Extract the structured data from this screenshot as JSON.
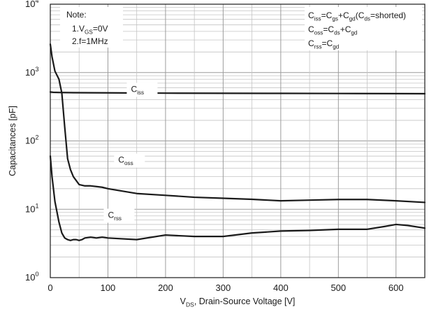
{
  "chart_data": {
    "type": "line",
    "title": "",
    "xlabel": {
      "main": "V",
      "sub": "DS",
      "rest": ", Drain-Source Voltage [V]"
    },
    "ylabel": "Capacitances [pF]",
    "xlim": [
      0,
      650
    ],
    "ylim": [
      1,
      10000
    ],
    "yscale": "log",
    "x_ticks": [
      0,
      100,
      200,
      300,
      400,
      500,
      600
    ],
    "x_tick_labels": [
      "0",
      "100",
      "200",
      "300",
      "400",
      "500",
      "600"
    ],
    "y_ticks": [
      {
        "value": 1,
        "base": "10",
        "exp": "0"
      },
      {
        "value": 10,
        "base": "10",
        "exp": "1"
      },
      {
        "value": 100,
        "base": "10",
        "exp": "2"
      },
      {
        "value": 1000,
        "base": "10",
        "exp": "3"
      },
      {
        "value": 10000,
        "base": "10",
        "exp": "4"
      }
    ],
    "grid": true,
    "series": [
      {
        "name": "Ciss",
        "label": {
          "main": "C",
          "sub": "iss"
        },
        "label_at": {
          "x": 140,
          "y": 520
        },
        "color": "#1a1a1a",
        "x": [
          0,
          5,
          15,
          40,
          100,
          200,
          300,
          400,
          500,
          600,
          650
        ],
        "y": [
          520,
          515,
          512,
          508,
          505,
          500,
          498,
          496,
          494,
          492,
          490
        ]
      },
      {
        "name": "Coss",
        "label": {
          "main": "C",
          "sub": "oss"
        },
        "label_at": {
          "x": 118,
          "y": 48
        },
        "color": "#1a1a1a",
        "x": [
          0,
          3,
          8,
          15,
          20,
          25,
          30,
          35,
          40,
          50,
          60,
          70,
          80,
          90,
          100,
          150,
          200,
          250,
          300,
          350,
          400,
          450,
          500,
          550,
          600,
          650
        ],
        "y": [
          2600,
          1700,
          1050,
          800,
          500,
          160,
          55,
          38,
          30,
          23,
          22,
          22,
          21.5,
          21,
          20,
          17,
          16,
          15,
          14.5,
          14,
          13.3,
          13.6,
          13.9,
          13.9,
          13.3,
          12.6
        ]
      },
      {
        "name": "Crss",
        "label": {
          "main": "C",
          "sub": "rss"
        },
        "label_at": {
          "x": 100,
          "y": 7.5
        },
        "color": "#1a1a1a",
        "x": [
          0,
          3,
          8,
          15,
          20,
          25,
          30,
          35,
          40,
          45,
          50,
          55,
          60,
          70,
          80,
          90,
          100,
          150,
          200,
          250,
          300,
          350,
          400,
          450,
          500,
          550,
          580,
          600,
          620,
          650
        ],
        "y": [
          60,
          30,
          13,
          6.5,
          4.5,
          3.8,
          3.6,
          3.5,
          3.6,
          3.6,
          3.5,
          3.6,
          3.8,
          3.9,
          3.8,
          3.9,
          3.8,
          3.6,
          4.2,
          4.0,
          4.0,
          4.5,
          4.8,
          4.9,
          5.1,
          5.1,
          5.6,
          6.0,
          5.8,
          5.3
        ]
      }
    ],
    "annotations": {
      "note": {
        "title": "Note:",
        "line1": {
          "pre": "1.V",
          "sub": "GS",
          "post": "=0V"
        },
        "line2": "2.f=1MHz"
      },
      "formulas": [
        [
          [
            "C",
            ""
          ],
          [
            "iss",
            "sub"
          ],
          [
            "=C",
            ""
          ],
          [
            "gs",
            "sub"
          ],
          [
            "+C",
            ""
          ],
          [
            "gd",
            "sub"
          ],
          [
            "(C",
            ""
          ],
          [
            "ds",
            "sub"
          ],
          [
            "=shorted)",
            ""
          ]
        ],
        [
          [
            "C",
            ""
          ],
          [
            "oss",
            "sub"
          ],
          [
            "=C",
            ""
          ],
          [
            "ds",
            "sub"
          ],
          [
            "+C",
            ""
          ],
          [
            "gd",
            "sub"
          ]
        ],
        [
          [
            "C",
            ""
          ],
          [
            "rss",
            "sub"
          ],
          [
            "=C",
            ""
          ],
          [
            "gd",
            "sub"
          ]
        ]
      ]
    }
  }
}
